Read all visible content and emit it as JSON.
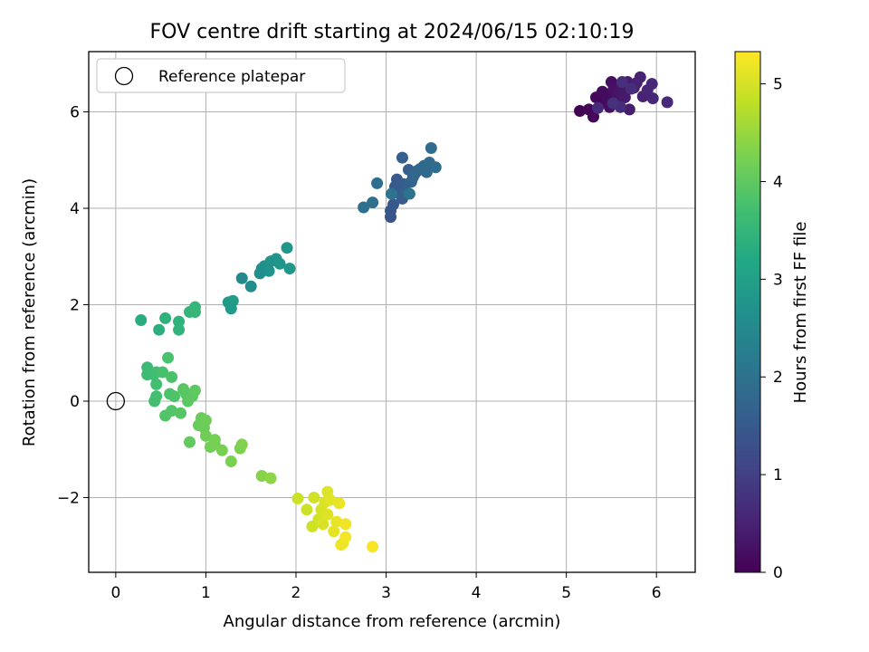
{
  "chart_data": {
    "type": "scatter",
    "title": "FOV centre drift starting at 2024/06/15 02:10:19",
    "xlabel": "Angular distance from reference (arcmin)",
    "ylabel": "Rotation from reference (arcmin)",
    "xlim": [
      -0.3,
      6.43
    ],
    "ylim": [
      -3.55,
      7.25
    ],
    "xticks": [
      "0",
      "1",
      "2",
      "3",
      "4",
      "5",
      "6"
    ],
    "yticks": [
      "−2",
      "0",
      "2",
      "4",
      "6"
    ],
    "grid": true,
    "legend": {
      "placement": "upper-left",
      "entries": [
        "Reference platepar"
      ]
    },
    "reference_point": {
      "x": 0,
      "y": 0
    },
    "colorbar": {
      "label": "Hours from first FF file",
      "range": [
        0,
        5.33
      ],
      "ticks": [
        "0",
        "1",
        "2",
        "3",
        "4",
        "5"
      ],
      "colormap": "viridis"
    },
    "series": [
      {
        "points": [
          [
            5.15,
            6.02,
            0.02
          ],
          [
            5.25,
            6.05,
            0.05
          ],
          [
            5.3,
            5.9,
            0.08
          ],
          [
            5.33,
            6.3,
            0.1
          ],
          [
            5.38,
            6.18,
            0.12
          ],
          [
            5.4,
            6.42,
            0.15
          ],
          [
            5.45,
            6.3,
            0.18
          ],
          [
            5.48,
            6.1,
            0.2
          ],
          [
            5.5,
            6.62,
            0.22
          ],
          [
            5.52,
            6.45,
            0.25
          ],
          [
            5.55,
            6.25,
            0.28
          ],
          [
            5.58,
            6.15,
            0.3
          ],
          [
            5.6,
            6.4,
            0.32
          ],
          [
            5.62,
            6.55,
            0.35
          ],
          [
            5.65,
            6.3,
            0.38
          ],
          [
            5.68,
            6.62,
            0.4
          ],
          [
            5.7,
            6.05,
            0.42
          ],
          [
            5.75,
            6.5,
            0.45
          ],
          [
            5.78,
            6.6,
            0.48
          ],
          [
            5.82,
            6.72,
            0.5
          ],
          [
            5.85,
            6.32,
            0.52
          ],
          [
            5.9,
            6.45,
            0.55
          ],
          [
            5.95,
            6.58,
            0.58
          ],
          [
            5.96,
            6.28,
            0.6
          ],
          [
            6.12,
            6.2,
            0.62
          ],
          [
            5.35,
            6.08,
            0.65
          ],
          [
            5.6,
            6.1,
            0.68
          ],
          [
            5.72,
            6.48,
            0.7
          ],
          [
            5.62,
            6.62,
            0.72
          ],
          [
            5.52,
            6.18,
            0.75
          ]
        ]
      },
      {
        "points": [
          [
            3.05,
            3.82,
            1.4
          ],
          [
            3.05,
            3.95,
            1.42
          ],
          [
            3.08,
            4.08,
            1.45
          ],
          [
            3.1,
            4.45,
            1.48
          ],
          [
            3.12,
            4.6,
            1.5
          ],
          [
            3.15,
            4.3,
            1.52
          ],
          [
            3.18,
            4.2,
            1.55
          ],
          [
            3.2,
            4.5,
            1.58
          ],
          [
            3.18,
            5.05,
            1.6
          ],
          [
            3.22,
            4.35,
            1.62
          ],
          [
            3.25,
            4.8,
            1.65
          ],
          [
            3.28,
            4.55,
            1.68
          ],
          [
            3.3,
            4.65,
            1.7
          ],
          [
            3.32,
            4.72,
            1.72
          ],
          [
            3.35,
            4.78,
            1.75
          ],
          [
            3.38,
            4.82,
            1.78
          ],
          [
            3.42,
            4.88,
            1.8
          ],
          [
            3.45,
            4.75,
            1.82
          ],
          [
            3.48,
            4.95,
            1.85
          ],
          [
            3.5,
            5.25,
            1.88
          ],
          [
            3.55,
            4.85,
            1.9
          ],
          [
            2.9,
            4.52,
            1.92
          ],
          [
            2.85,
            4.12,
            1.95
          ],
          [
            2.75,
            4.02,
            1.98
          ],
          [
            3.06,
            4.3,
            2.0
          ],
          [
            3.26,
            4.3,
            2.02
          ]
        ]
      },
      {
        "points": [
          [
            1.4,
            2.55,
            2.5
          ],
          [
            1.5,
            2.38,
            2.55
          ],
          [
            1.6,
            2.65,
            2.6
          ],
          [
            1.62,
            2.75,
            2.62
          ],
          [
            1.65,
            2.8,
            2.65
          ],
          [
            1.7,
            2.7,
            2.68
          ],
          [
            1.72,
            2.9,
            2.7
          ],
          [
            1.78,
            2.95,
            2.72
          ],
          [
            1.82,
            2.85,
            2.75
          ],
          [
            1.9,
            3.18,
            2.78
          ],
          [
            1.93,
            2.75,
            2.8
          ],
          [
            1.25,
            2.05,
            2.85
          ],
          [
            1.28,
            1.92,
            2.88
          ],
          [
            1.3,
            2.08,
            2.9
          ]
        ]
      },
      {
        "points": [
          [
            0.28,
            1.68,
            3.3
          ],
          [
            0.48,
            1.48,
            3.35
          ],
          [
            0.55,
            1.72,
            3.4
          ],
          [
            0.7,
            1.65,
            3.42
          ],
          [
            0.7,
            1.48,
            3.45
          ],
          [
            0.82,
            1.85,
            3.48
          ],
          [
            0.88,
            1.95,
            3.5
          ],
          [
            0.88,
            1.85,
            3.52
          ]
        ]
      },
      {
        "points": [
          [
            0.35,
            0.7,
            3.6
          ],
          [
            0.35,
            0.55,
            3.62
          ],
          [
            0.42,
            0.55,
            3.65
          ],
          [
            0.45,
            0.6,
            3.68
          ],
          [
            0.45,
            0.35,
            3.7
          ],
          [
            0.45,
            0.1,
            3.72
          ],
          [
            0.43,
            0.0,
            3.74
          ],
          [
            0.52,
            0.6,
            3.76
          ],
          [
            0.58,
            0.9,
            3.78
          ],
          [
            0.62,
            0.5,
            3.8
          ],
          [
            0.6,
            0.15,
            3.82
          ],
          [
            0.65,
            0.1,
            3.84
          ],
          [
            0.55,
            -0.3,
            3.86
          ],
          [
            0.62,
            -0.2,
            3.88
          ],
          [
            0.72,
            -0.25,
            3.9
          ],
          [
            0.75,
            0.25,
            3.92
          ],
          [
            0.78,
            0.15,
            3.94
          ],
          [
            0.8,
            0.0,
            3.96
          ],
          [
            0.85,
            0.1,
            3.98
          ],
          [
            0.88,
            0.22,
            4.0
          ]
        ]
      },
      {
        "points": [
          [
            0.82,
            -0.85,
            4.05
          ],
          [
            0.92,
            -0.5,
            4.08
          ],
          [
            0.95,
            -0.35,
            4.1
          ],
          [
            0.98,
            -0.55,
            4.12
          ],
          [
            1.0,
            -0.4,
            4.14
          ],
          [
            1.0,
            -0.72,
            4.16
          ],
          [
            1.05,
            -0.95,
            4.18
          ],
          [
            1.1,
            -0.8,
            4.2
          ],
          [
            1.1,
            -0.9,
            4.22
          ],
          [
            1.18,
            -1.02,
            4.24
          ],
          [
            1.28,
            -1.25,
            4.26
          ],
          [
            1.38,
            -0.98,
            4.28
          ],
          [
            1.4,
            -0.9,
            4.3
          ],
          [
            1.62,
            -1.55,
            4.35
          ],
          [
            1.72,
            -1.6,
            4.4
          ]
        ]
      },
      {
        "points": [
          [
            2.02,
            -2.02,
            4.9
          ],
          [
            2.12,
            -2.25,
            4.92
          ],
          [
            2.18,
            -2.6,
            4.94
          ],
          [
            2.2,
            -2.0,
            4.96
          ],
          [
            2.25,
            -2.45,
            4.98
          ],
          [
            2.28,
            -2.25,
            5.0
          ],
          [
            2.3,
            -2.55,
            5.02
          ],
          [
            2.32,
            -2.1,
            5.04
          ],
          [
            2.35,
            -1.88,
            5.06
          ],
          [
            2.35,
            -2.35,
            5.08
          ],
          [
            2.38,
            -2.05,
            5.1
          ],
          [
            2.42,
            -2.7,
            5.12
          ],
          [
            2.45,
            -2.5,
            5.14
          ],
          [
            2.48,
            -2.12,
            5.16
          ],
          [
            2.5,
            -2.98,
            5.18
          ],
          [
            2.52,
            -2.95,
            5.2
          ],
          [
            2.55,
            -2.55,
            5.22
          ],
          [
            2.55,
            -2.82,
            5.24
          ],
          [
            2.85,
            -3.02,
            5.28
          ]
        ]
      }
    ]
  }
}
